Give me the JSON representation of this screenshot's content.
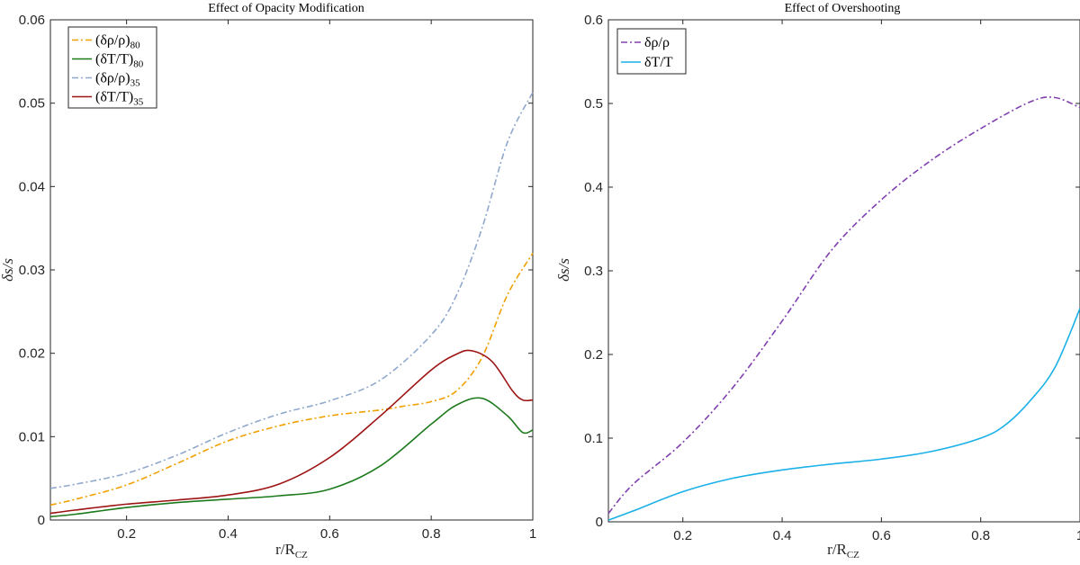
{
  "chart_data": [
    {
      "type": "line",
      "title": "Effect of Opacity Modification",
      "xlabel": "r/R",
      "xlabel_sub": "CZ",
      "ylabel": "δs/s",
      "xlim": [
        0.05,
        1.0
      ],
      "ylim": [
        0,
        0.06
      ],
      "xticks": [
        0.2,
        0.4,
        0.6,
        0.8,
        1.0
      ],
      "xtick_labels": [
        "0.2",
        "0.4",
        "0.6",
        "0.8",
        "1"
      ],
      "yticks": [
        0,
        0.01,
        0.02,
        0.03,
        0.04,
        0.05,
        0.06
      ],
      "ytick_labels": [
        "0",
        "0.01",
        "0.02",
        "0.03",
        "0.04",
        "0.05",
        "0.06"
      ],
      "legend_position": "top-left",
      "series": [
        {
          "name": "(δρ/ρ)",
          "sub": "80",
          "color": "#f0a000",
          "dash": "dashdot",
          "x": [
            0.05,
            0.1,
            0.2,
            0.3,
            0.4,
            0.5,
            0.6,
            0.7,
            0.75,
            0.8,
            0.85,
            0.9,
            0.95,
            1.0
          ],
          "y": [
            0.0018,
            0.0025,
            0.0042,
            0.0068,
            0.0095,
            0.0113,
            0.0125,
            0.0132,
            0.0137,
            0.0142,
            0.0155,
            0.0195,
            0.027,
            0.032
          ]
        },
        {
          "name": "(δT/T)",
          "sub": "80",
          "color": "#1c7a1c",
          "dash": "solid",
          "x": [
            0.05,
            0.1,
            0.2,
            0.3,
            0.4,
            0.5,
            0.6,
            0.7,
            0.8,
            0.85,
            0.9,
            0.95,
            0.98,
            1.0
          ],
          "y": [
            0.0004,
            0.0007,
            0.0015,
            0.0021,
            0.0025,
            0.0029,
            0.0037,
            0.0065,
            0.0115,
            0.0138,
            0.0146,
            0.0125,
            0.0105,
            0.0108
          ]
        },
        {
          "name": "(δρ/ρ)",
          "sub": "35",
          "color": "#8fa8cc",
          "dash": "dashdot",
          "x": [
            0.05,
            0.1,
            0.2,
            0.3,
            0.4,
            0.5,
            0.6,
            0.7,
            0.8,
            0.85,
            0.9,
            0.95,
            1.0
          ],
          "y": [
            0.0038,
            0.0043,
            0.0056,
            0.0078,
            0.0105,
            0.0127,
            0.0143,
            0.0168,
            0.0222,
            0.027,
            0.035,
            0.0453,
            0.0513
          ]
        },
        {
          "name": "(δT/T)",
          "sub": "35",
          "color": "#9c1414",
          "dash": "solid",
          "x": [
            0.05,
            0.1,
            0.2,
            0.3,
            0.4,
            0.5,
            0.6,
            0.7,
            0.8,
            0.85,
            0.88,
            0.92,
            0.96,
            0.98,
            1.0
          ],
          "y": [
            0.0008,
            0.0012,
            0.0019,
            0.0024,
            0.003,
            0.0043,
            0.0075,
            0.0125,
            0.018,
            0.0199,
            0.0203,
            0.019,
            0.0155,
            0.0144,
            0.0144
          ]
        }
      ]
    },
    {
      "type": "line",
      "title": "Effect of Overshooting",
      "xlabel": "r/R",
      "xlabel_sub": "CZ",
      "ylabel": "δs/s",
      "xlim": [
        0.05,
        1.0
      ],
      "ylim": [
        0,
        0.6
      ],
      "xticks": [
        0.2,
        0.4,
        0.6,
        0.8,
        1.0
      ],
      "xtick_labels": [
        "0.2",
        "0.4",
        "0.6",
        "0.8",
        "1"
      ],
      "yticks": [
        0,
        0.1,
        0.2,
        0.3,
        0.4,
        0.5,
        0.6
      ],
      "ytick_labels": [
        "0",
        "0.1",
        "0.2",
        "0.3",
        "0.4",
        "0.5",
        "0.6"
      ],
      "legend_position": "top-left",
      "series": [
        {
          "name": "δρ/ρ",
          "sub": "",
          "color": "#8040b0",
          "dash": "dashdot",
          "x": [
            0.05,
            0.1,
            0.2,
            0.3,
            0.4,
            0.5,
            0.6,
            0.7,
            0.8,
            0.9,
            0.95,
            1.0
          ],
          "y": [
            0.01,
            0.045,
            0.095,
            0.16,
            0.24,
            0.325,
            0.385,
            0.432,
            0.47,
            0.502,
            0.507,
            0.495
          ]
        },
        {
          "name": "δT/T",
          "sub": "",
          "color": "#1ab0e8",
          "dash": "solid",
          "x": [
            0.05,
            0.1,
            0.2,
            0.3,
            0.4,
            0.5,
            0.6,
            0.7,
            0.8,
            0.85,
            0.9,
            0.95,
            1.0
          ],
          "y": [
            0.002,
            0.013,
            0.036,
            0.052,
            0.062,
            0.069,
            0.075,
            0.084,
            0.1,
            0.116,
            0.145,
            0.185,
            0.255
          ]
        }
      ]
    }
  ]
}
